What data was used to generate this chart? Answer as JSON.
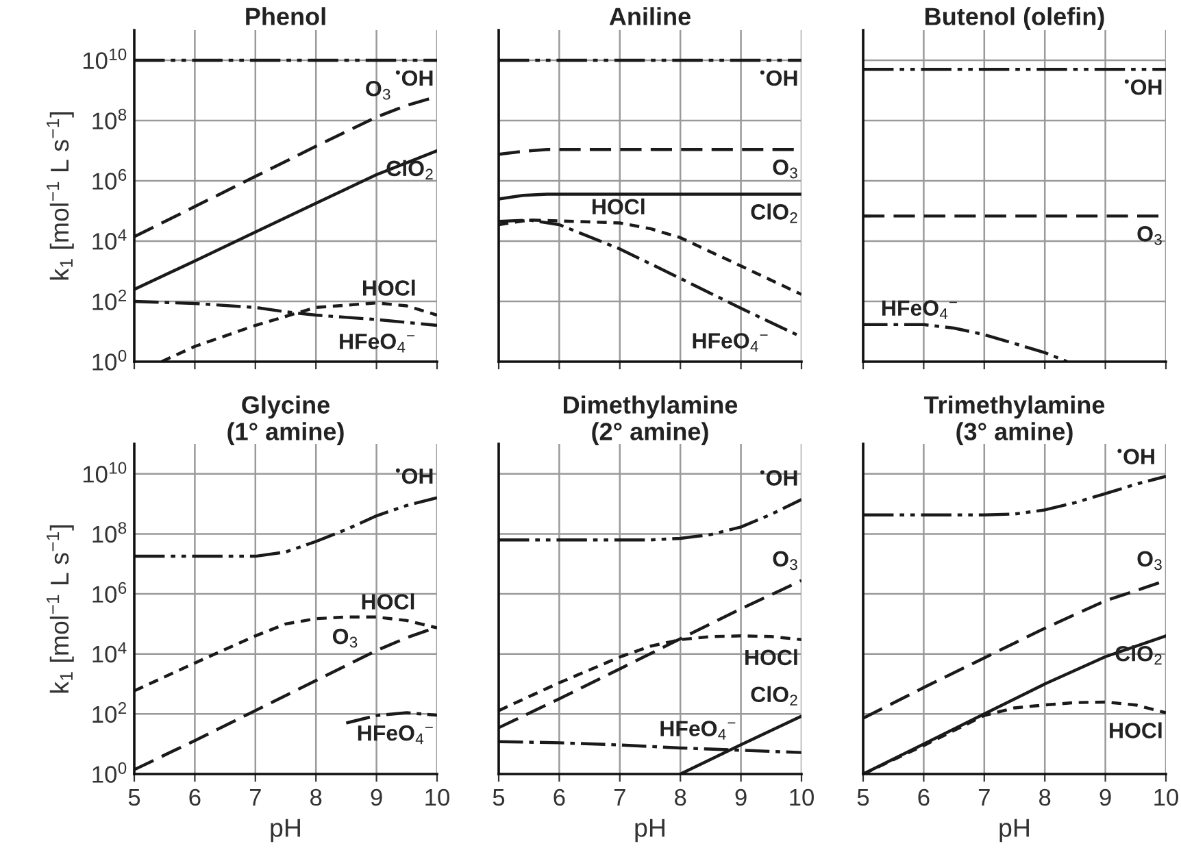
{
  "chart_data": [
    {
      "type": "line",
      "title": "Phenol",
      "ylabel": "k$_{1}$ [mol$^{−1}$ L s$^{−1}$]",
      "log": "y",
      "grid": true,
      "tick_labels": "y",
      "xlim": [
        5,
        10
      ],
      "xticks": [
        5,
        6,
        7,
        8,
        9,
        10
      ],
      "ylim": [
        1,
        100000000000.0
      ],
      "yticks": [
        {
          "value": 1,
          "label": "10$^{0}$"
        },
        {
          "value": 100,
          "label": "10$^{2}$"
        },
        {
          "value": 10000.0,
          "label": "10$^{4}$"
        },
        {
          "value": 1000000.0,
          "label": "10$^{6}$"
        },
        {
          "value": 100000000.0,
          "label": "10$^{8}$"
        },
        {
          "value": 10000000000.0,
          "label": "10$^{10}$"
        }
      ],
      "series": [
        {
          "name": "$^{•}$OH",
          "color": "#1a1a1a",
          "line_style": "dashdotdot",
          "x": [
            5,
            10
          ],
          "values": [
            10000000000.0,
            10000000000.0
          ]
        },
        {
          "name": "O$_{3}$",
          "color": "#1a1a1a",
          "line_style": "longdash",
          "x": [
            5,
            6,
            7,
            8,
            9,
            9.5,
            10
          ],
          "values": [
            14000.0,
            140000.0,
            1400000.0,
            14000000.0,
            130000000.0,
            320000000.0,
            630000000.0
          ]
        },
        {
          "name": "ClO$_{2}$",
          "color": "#1a1a1a",
          "line_style": "solid",
          "x": [
            5,
            6,
            7,
            8,
            9,
            10
          ],
          "values": [
            250,
            2200,
            20000.0,
            180000.0,
            1600000.0,
            10000000.0
          ]
        },
        {
          "name": "HOCl",
          "color": "#1a1a1a",
          "line_style": "dashed",
          "x": [
            5.45,
            6,
            7,
            8,
            9,
            9.5,
            10
          ],
          "values": [
            1,
            3.2,
            16,
            63,
            89,
            71,
            35
          ]
        },
        {
          "name": "HFeO$_{4}$$^{−}$",
          "color": "#1a1a1a",
          "line_style": "dashdot",
          "x": [
            5,
            6,
            7,
            7.5,
            8,
            9,
            10
          ],
          "values": [
            100,
            85,
            63,
            45,
            35,
            25,
            16
          ]
        }
      ]
    },
    {
      "type": "line",
      "title": "Aniline",
      "log": "y",
      "grid": true,
      "tick_labels": false,
      "xlim": [
        5,
        10
      ],
      "xticks": [
        5,
        6,
        7,
        8,
        9,
        10
      ],
      "ylim": [
        1,
        100000000000.0
      ],
      "yticks": [
        {
          "value": 1,
          "label": null
        },
        {
          "value": 100,
          "label": null
        },
        {
          "value": 10000.0,
          "label": null
        },
        {
          "value": 1000000.0,
          "label": null
        },
        {
          "value": 100000000.0,
          "label": null
        },
        {
          "value": 10000000000.0,
          "label": null
        }
      ],
      "series": [
        {
          "name": "$^{•}$OH",
          "color": "#1a1a1a",
          "line_style": "dashdotdot",
          "x": [
            5,
            10
          ],
          "values": [
            10000000000.0,
            10000000000.0
          ]
        },
        {
          "name": "O$_{3}$",
          "color": "#1a1a1a",
          "line_style": "longdash",
          "x": [
            5,
            5.4,
            5.8,
            10
          ],
          "values": [
            7600000.0,
            9500000.0,
            11000000.0,
            11000000.0
          ]
        },
        {
          "name": "ClO$_{2}$",
          "color": "#1a1a1a",
          "line_style": "solid",
          "x": [
            5,
            5.4,
            5.8,
            10
          ],
          "values": [
            250000.0,
            330000.0,
            360000.0,
            360000.0
          ]
        },
        {
          "name": "HOCl",
          "color": "#1a1a1a",
          "line_style": "dashed",
          "x": [
            5,
            5.5,
            6,
            7,
            7.5,
            8,
            9,
            10
          ],
          "values": [
            35000.0,
            50000.0,
            47000.0,
            40000.0,
            26000.0,
            13000.0,
            1500,
            170
          ]
        },
        {
          "name": "HFeO$_{4}$$^{−}$",
          "color": "#1a1a1a",
          "line_style": "dashdot",
          "x": [
            5,
            5.5,
            6,
            7,
            8,
            9,
            10
          ],
          "values": [
            45000.0,
            50000.0,
            35000.0,
            5500,
            580,
            59,
            6.6
          ]
        }
      ]
    },
    {
      "type": "line",
      "title": "Butenol (olefin)",
      "log": "y",
      "grid": true,
      "tick_labels": false,
      "xlim": [
        5,
        10
      ],
      "xticks": [
        5,
        6,
        7,
        8,
        9,
        10
      ],
      "ylim": [
        1,
        100000000000.0
      ],
      "yticks": [
        {
          "value": 1,
          "label": null
        },
        {
          "value": 100,
          "label": null
        },
        {
          "value": 10000.0,
          "label": null
        },
        {
          "value": 1000000.0,
          "label": null
        },
        {
          "value": 100000000.0,
          "label": null
        },
        {
          "value": 10000000000.0,
          "label": null
        }
      ],
      "series": [
        {
          "name": "$^{•}$OH",
          "color": "#1a1a1a",
          "line_style": "dashdotdot",
          "x": [
            5,
            10
          ],
          "values": [
            5000000000.0,
            5000000000.0
          ]
        },
        {
          "name": "O$_{3}$",
          "color": "#1a1a1a",
          "line_style": "longdash",
          "x": [
            5,
            10
          ],
          "values": [
            68000.0,
            68000.0
          ]
        },
        {
          "name": "HFeO$_{4}$$^{−}$",
          "color": "#1a1a1a",
          "line_style": "dashdot",
          "x": [
            5,
            6,
            6.5,
            7,
            7.5,
            8,
            8.37
          ],
          "values": [
            17,
            17,
            13,
            7.9,
            4,
            2,
            1
          ]
        }
      ]
    },
    {
      "type": "line",
      "title": "Glycine\n(1° amine)",
      "xlabel": "pH",
      "ylabel": "k$_{1}$ [mol$^{−1}$ L s$^{−1}$]",
      "log": "y",
      "grid": true,
      "xlim": [
        5,
        10
      ],
      "xticks": [
        5,
        6,
        7,
        8,
        9,
        10
      ],
      "ylim": [
        1,
        100000000000.0
      ],
      "yticks": [
        {
          "value": 1,
          "label": "10$^{0}$"
        },
        {
          "value": 100,
          "label": "10$^{2}$"
        },
        {
          "value": 10000.0,
          "label": "10$^{4}$"
        },
        {
          "value": 1000000.0,
          "label": "10$^{6}$"
        },
        {
          "value": 100000000.0,
          "label": "10$^{8}$"
        },
        {
          "value": 10000000000.0,
          "label": "10$^{10}$"
        }
      ],
      "series": [
        {
          "name": "$^{•}$OH",
          "color": "#1a1a1a",
          "line_style": "dashdotdot",
          "x": [
            5,
            7,
            7.5,
            8,
            8.5,
            9,
            9.5,
            10
          ],
          "values": [
            18000000.0,
            18000000.0,
            25000000.0,
            56000000.0,
            140000000.0,
            400000000.0,
            890000000.0,
            1600000000.0
          ]
        },
        {
          "name": "HOCl",
          "color": "#1a1a1a",
          "line_style": "dashed",
          "x": [
            5,
            6,
            7,
            7.5,
            8,
            8.5,
            9,
            9.5,
            10
          ],
          "values": [
            590,
            5000,
            40000.0,
            100000.0,
            150000.0,
            170000.0,
            170000.0,
            130000.0,
            74000.0
          ]
        },
        {
          "name": "O$_{3}$",
          "color": "#1a1a1a",
          "line_style": "longdash",
          "x": [
            5,
            6,
            7,
            8,
            9,
            9.5,
            10
          ],
          "values": [
            1.4,
            13,
            130,
            1300,
            13000.0,
            35000.0,
            78000.0
          ]
        },
        {
          "name": "HFeO$_{4}$$^{−}$",
          "color": "#1a1a1a",
          "line_style": "dashdot",
          "x": [
            8.5,
            9,
            9.5,
            10
          ],
          "values": [
            50,
            89,
            110,
            91
          ]
        }
      ]
    },
    {
      "type": "line",
      "title": "Dimethylamine\n(2° amine)",
      "xlabel": "pH",
      "log": "y",
      "grid": true,
      "tick_labels": "x",
      "xlim": [
        5,
        10
      ],
      "xticks": [
        5,
        6,
        7,
        8,
        9,
        10
      ],
      "ylim": [
        1,
        100000000000.0
      ],
      "yticks": [
        {
          "value": 1,
          "label": null
        },
        {
          "value": 100,
          "label": null
        },
        {
          "value": 10000.0,
          "label": null
        },
        {
          "value": 1000000.0,
          "label": null
        },
        {
          "value": 100000000.0,
          "label": null
        },
        {
          "value": 10000000000.0,
          "label": null
        }
      ],
      "series": [
        {
          "name": "$^{•}$OH",
          "color": "#1a1a1a",
          "line_style": "dashdotdot",
          "x": [
            5,
            7.5,
            8,
            8.5,
            9,
            9.5,
            10
          ],
          "values": [
            63000000.0,
            63000000.0,
            71000000.0,
            95000000.0,
            170000000.0,
            450000000.0,
            1400000000.0
          ]
        },
        {
          "name": "O$_{3}$",
          "color": "#1a1a1a",
          "line_style": "longdash",
          "x": [
            5,
            6,
            7,
            8,
            9,
            10
          ],
          "values": [
            35,
            320,
            3200,
            32000.0,
            320000.0,
            2800000.0
          ]
        },
        {
          "name": "HOCl",
          "color": "#1a1a1a",
          "line_style": "dashed",
          "x": [
            5,
            6,
            7,
            7.5,
            8,
            8.5,
            9,
            9.5,
            10
          ],
          "values": [
            130,
            1100,
            7900,
            18000.0,
            30000.0,
            38000.0,
            40000.0,
            38000.0,
            30000.0
          ]
        },
        {
          "name": "HFeO$_{4}$$^{−}$",
          "color": "#1a1a1a",
          "line_style": "dashdot",
          "x": [
            5,
            6,
            7,
            8,
            9,
            10
          ],
          "values": [
            12,
            11,
            9.3,
            7.4,
            6.2,
            5.2
          ]
        },
        {
          "name": "ClO$_{2}$",
          "color": "#1a1a1a",
          "line_style": "solid",
          "x": [
            8,
            9,
            10
          ],
          "values": [
            1,
            9.5,
            85
          ]
        }
      ]
    },
    {
      "type": "line",
      "title": "Trimethylamine\n(3° amine)",
      "xlabel": "pH",
      "log": "y",
      "grid": true,
      "tick_labels": "x",
      "xlim": [
        5,
        10
      ],
      "xticks": [
        5,
        6,
        7,
        8,
        9,
        10
      ],
      "ylim": [
        1,
        100000000000.0
      ],
      "yticks": [
        {
          "value": 1,
          "label": null
        },
        {
          "value": 100,
          "label": null
        },
        {
          "value": 10000.0,
          "label": null
        },
        {
          "value": 1000000.0,
          "label": null
        },
        {
          "value": 100000000.0,
          "label": null
        },
        {
          "value": 10000000000.0,
          "label": null
        }
      ],
      "series": [
        {
          "name": "$^{•}$OH",
          "color": "#1a1a1a",
          "line_style": "dashdotdot",
          "x": [
            5,
            7,
            7.5,
            8,
            8.5,
            9,
            9.5,
            10
          ],
          "values": [
            430000000.0,
            430000000.0,
            460000000.0,
            630000000.0,
            1100000000.0,
            2200000000.0,
            4500000000.0,
            8300000000.0
          ]
        },
        {
          "name": "O$_{3}$",
          "color": "#1a1a1a",
          "line_style": "longdash",
          "x": [
            5,
            6,
            7,
            8,
            9,
            10
          ],
          "values": [
            72,
            760,
            7400,
            72000.0,
            590000.0,
            2800000.0
          ]
        },
        {
          "name": "ClO$_{2}$",
          "color": "#1a1a1a",
          "line_style": "solid",
          "x": [
            5,
            6,
            7,
            8,
            9,
            10
          ],
          "values": [
            1,
            10,
            100,
            1000,
            8100,
            40000.0
          ]
        },
        {
          "name": "HOCl",
          "color": "#1a1a1a",
          "line_style": "dashed",
          "x": [
            5,
            6,
            7,
            7.5,
            8,
            8.5,
            9,
            9.5,
            10
          ],
          "values": [
            1,
            8.9,
            89,
            160,
            200,
            240,
            250,
            200,
            110
          ]
        }
      ]
    }
  ]
}
